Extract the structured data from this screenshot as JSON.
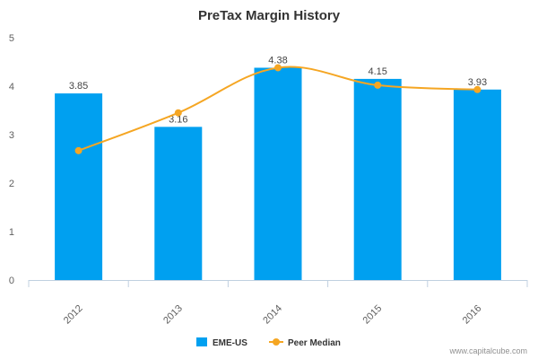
{
  "chart_data": {
    "type": "bar",
    "title": "PreTax Margin History",
    "categories": [
      "2012",
      "2013",
      "2014",
      "2015",
      "2016"
    ],
    "ylim": [
      0,
      5
    ],
    "yticks": [
      "0",
      "1",
      "2",
      "3",
      "4",
      "5"
    ],
    "grid": false,
    "legend_position": "bottom-center",
    "series": [
      {
        "name": "EME-US",
        "type": "bar",
        "color": "#00A0F0",
        "values": [
          3.85,
          3.16,
          4.38,
          4.15,
          3.93
        ],
        "labels": [
          "3.85",
          "3.16",
          "4.38",
          "4.15",
          "3.93"
        ]
      },
      {
        "name": "Peer Median",
        "type": "line",
        "smooth": true,
        "color": "#F5A623",
        "values": [
          2.67,
          3.45,
          4.38,
          4.02,
          3.93
        ]
      }
    ]
  },
  "credit": "www.capitalcube.com"
}
